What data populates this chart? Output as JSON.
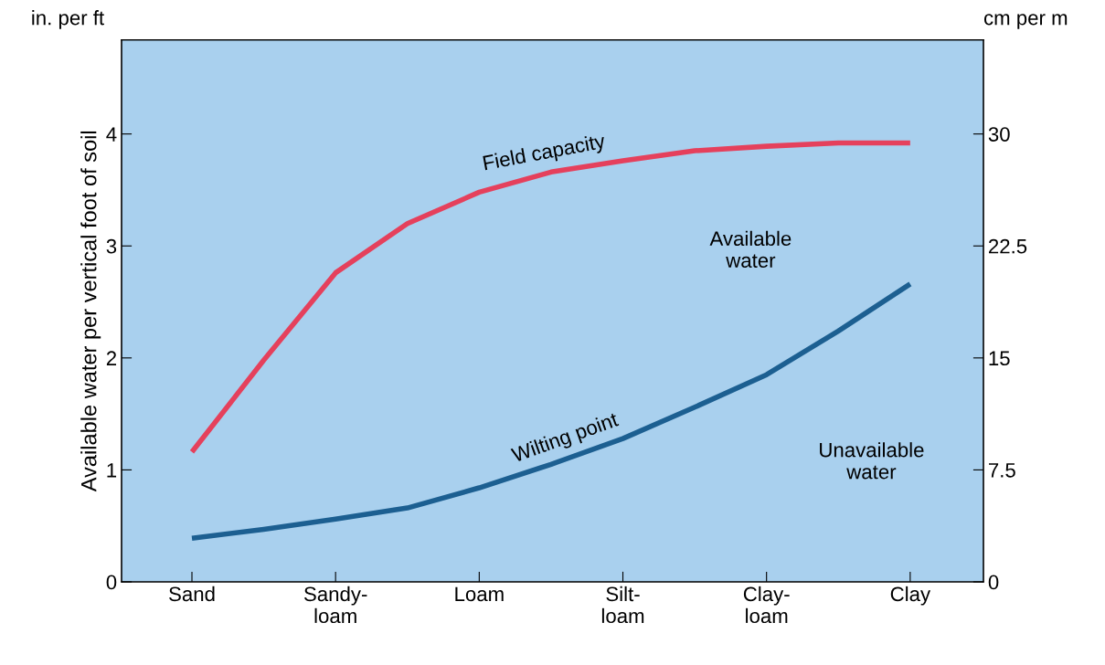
{
  "chart_data": {
    "type": "line",
    "ylabel": "Available water per vertical foot of soil",
    "y2label": "cm per m",
    "categories": [
      "Sand",
      null,
      "Sandy-\nloam",
      null,
      "Loam",
      null,
      "Silt-\nloam",
      null,
      "Clay-\nloam",
      null,
      "Clay"
    ],
    "series": [
      {
        "name": "Field capacity",
        "color": "#e5405c",
        "values": [
          1.16,
          1.98,
          2.76,
          3.2,
          3.48,
          3.66,
          3.76,
          3.85,
          3.89,
          3.92,
          3.92
        ]
      },
      {
        "name": "Wilting point",
        "color": "#1c5f91",
        "values": [
          0.39,
          0.47,
          0.56,
          0.66,
          0.84,
          1.05,
          1.28,
          1.56,
          1.85,
          2.24,
          2.66
        ]
      }
    ],
    "ylim": [
      0,
      4.84
    ],
    "yticks": [
      0,
      1,
      2,
      3,
      4
    ],
    "y2lim": [
      0,
      36.3
    ],
    "y2ticks": [
      0,
      {
        "value": 7.5,
        "label": "7.5"
      },
      15,
      {
        "value": 22.5,
        "label": "22.5"
      },
      30
    ],
    "annotations": [
      "in. per ft",
      "Available\nwater",
      "Unavailable\nwater"
    ],
    "grid": false,
    "legend": false,
    "marker": "none",
    "line_style": "solid"
  }
}
